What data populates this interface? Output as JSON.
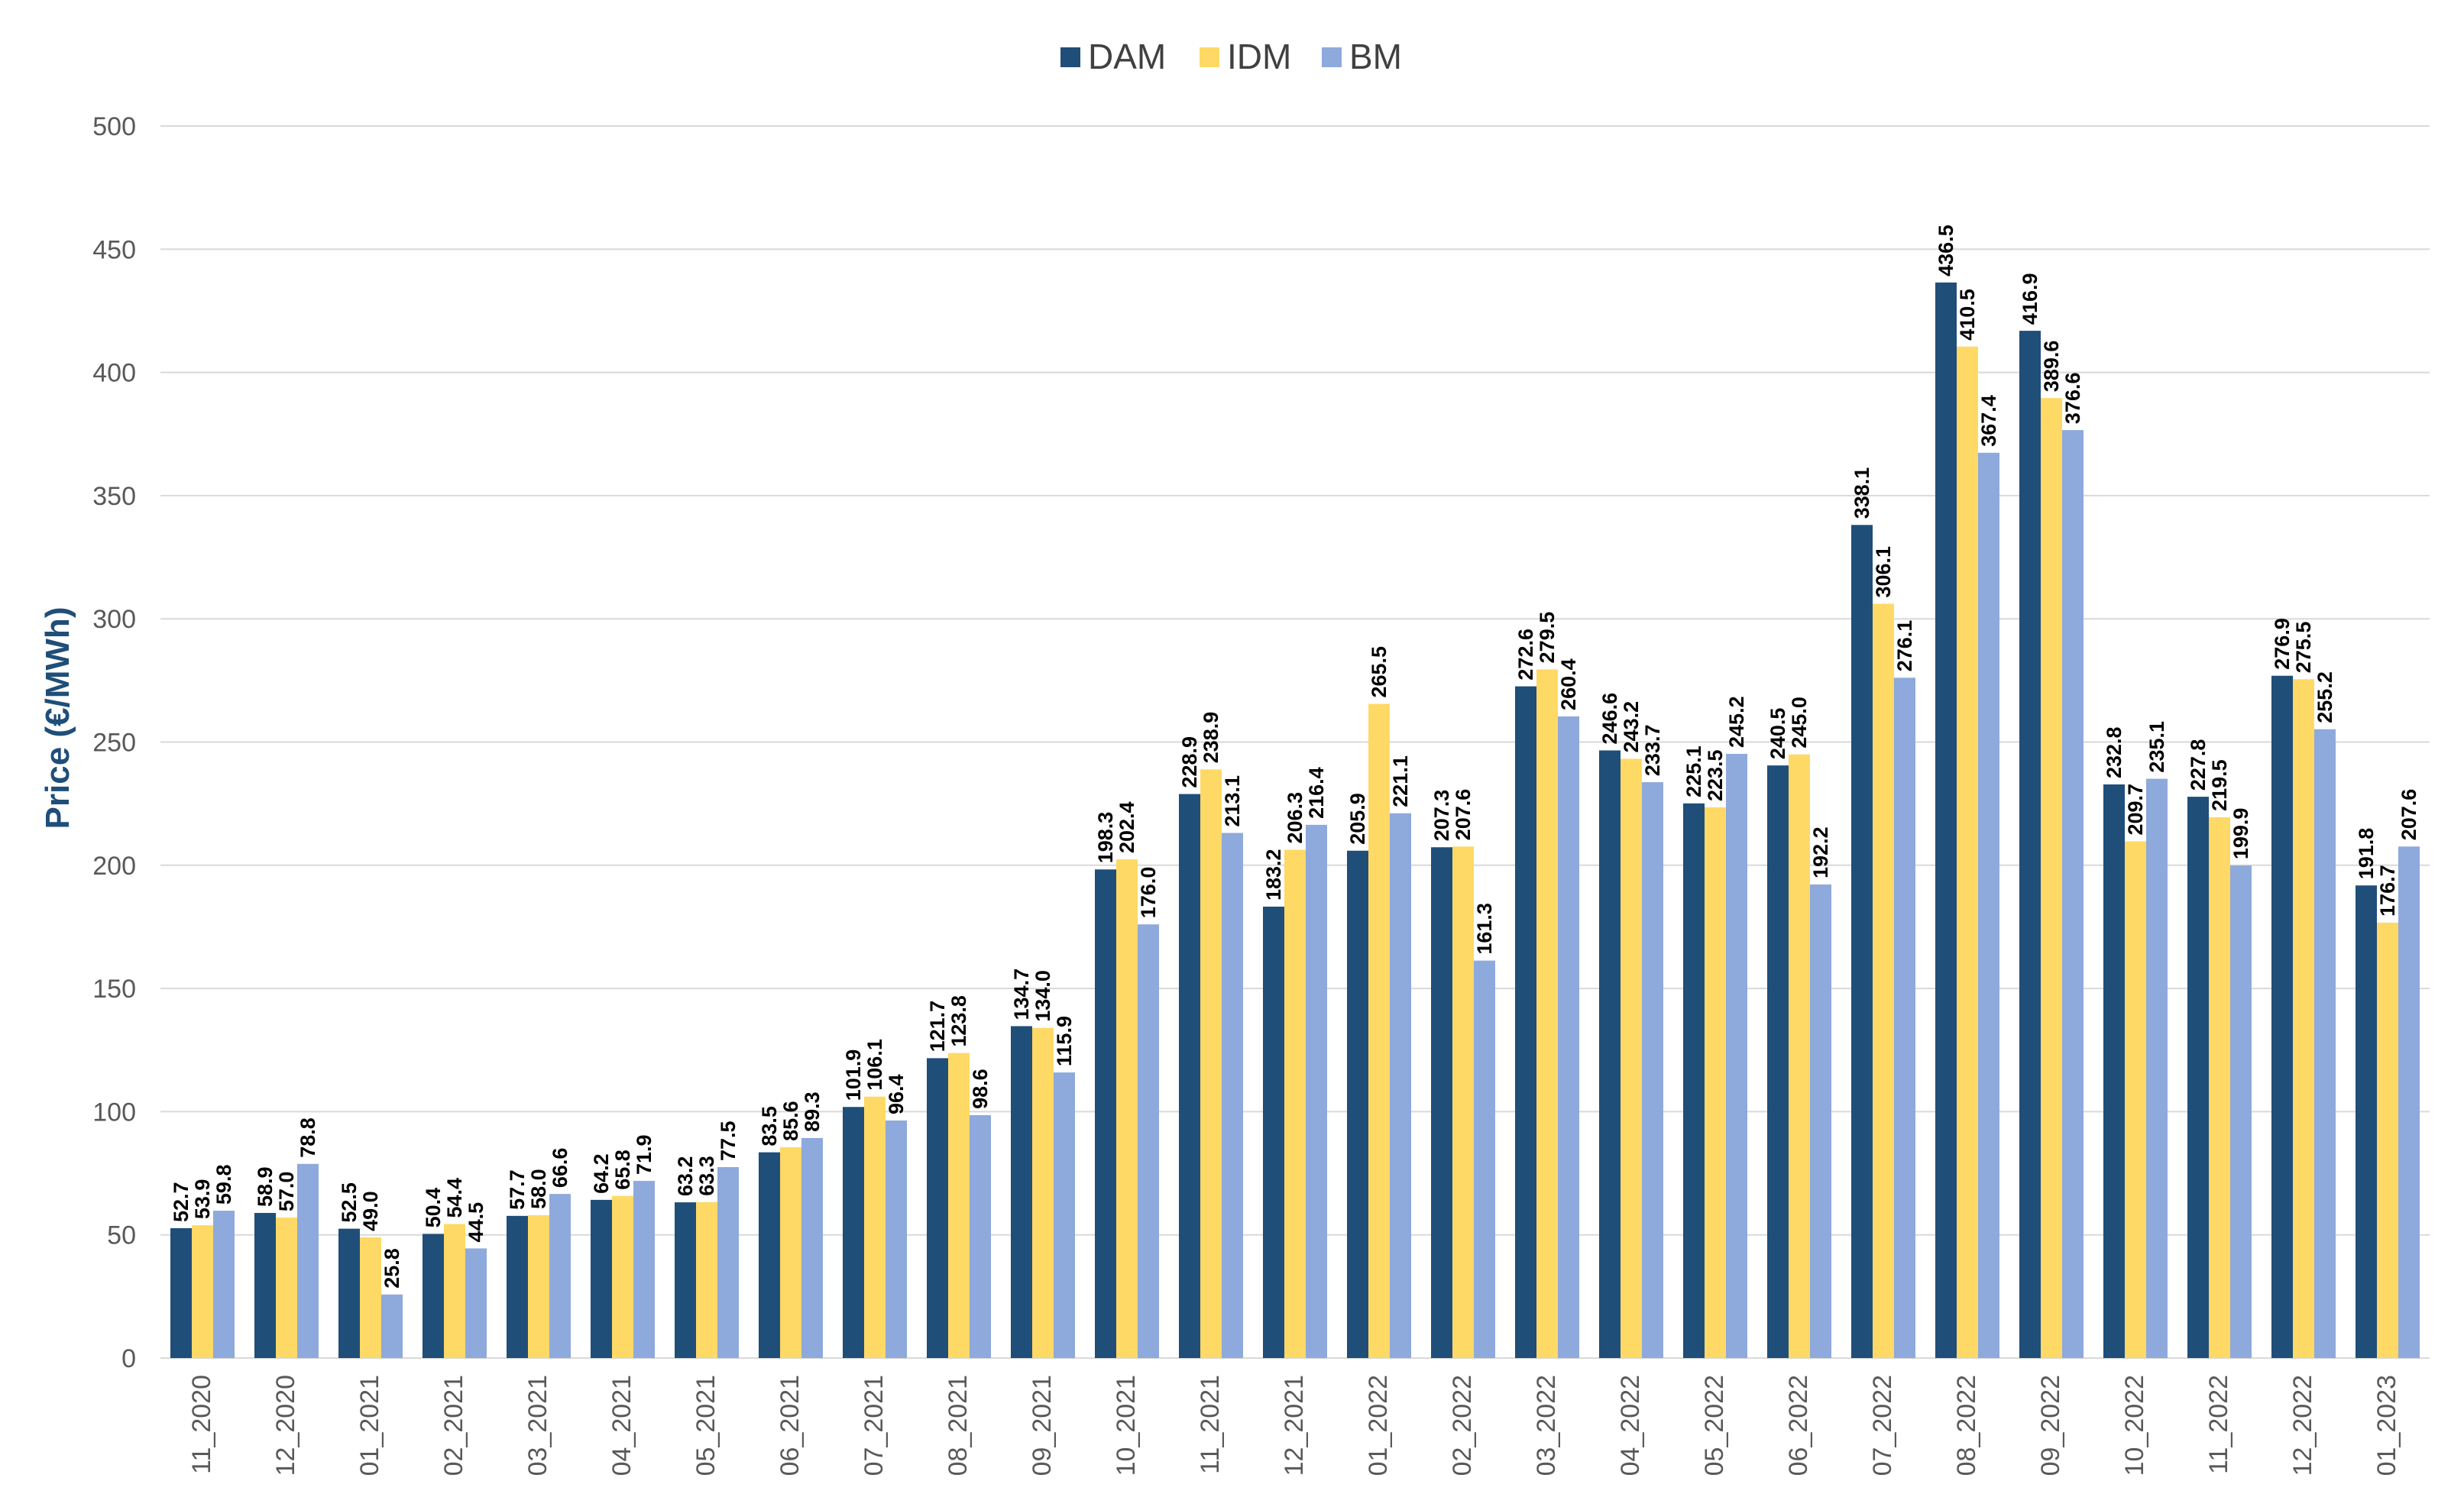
{
  "chart_data": {
    "type": "bar",
    "title": "",
    "xlabel": "",
    "ylabel": "Price (€/MWh)",
    "ylim": [
      0,
      500
    ],
    "yticks": [
      0,
      50,
      100,
      150,
      200,
      250,
      300,
      350,
      400,
      450,
      500
    ],
    "legend_position": "top-center",
    "grid": true,
    "categories": [
      "11_2020",
      "12_2020",
      "01_2021",
      "02_2021",
      "03_2021",
      "04_2021",
      "05_2021",
      "06_2021",
      "07_2021",
      "08_2021",
      "09_2021",
      "10_2021",
      "11_2021",
      "12_2021",
      "01_2022",
      "02_2022",
      "03_2022",
      "04_2022",
      "05_2022",
      "06_2022",
      "07_2022",
      "08_2022",
      "09_2022",
      "10_2022",
      "11_2022",
      "12_2022",
      "01_2023"
    ],
    "series": [
      {
        "name": "DAM",
        "color": "#1F4E79",
        "values": [
          52.7,
          58.9,
          52.5,
          50.4,
          57.7,
          64.2,
          63.2,
          83.5,
          101.9,
          121.7,
          134.7,
          198.3,
          228.9,
          183.2,
          205.9,
          207.3,
          272.6,
          246.6,
          225.1,
          240.5,
          338.1,
          436.5,
          416.9,
          232.8,
          227.8,
          276.9,
          191.8
        ]
      },
      {
        "name": "IDM",
        "color": "#FFD966",
        "values": [
          53.9,
          57.0,
          49.0,
          54.4,
          58.0,
          65.8,
          63.3,
          85.6,
          106.1,
          123.8,
          134.0,
          202.4,
          238.9,
          206.3,
          265.5,
          207.6,
          279.5,
          243.2,
          223.5,
          245.0,
          306.1,
          410.5,
          389.6,
          209.7,
          219.5,
          275.5,
          176.7
        ]
      },
      {
        "name": "BM",
        "color": "#8EA9DB",
        "values": [
          59.8,
          78.8,
          25.8,
          44.5,
          66.6,
          71.9,
          77.5,
          89.3,
          96.4,
          98.6,
          115.9,
          176.0,
          213.1,
          216.4,
          221.1,
          161.3,
          260.4,
          233.7,
          245.2,
          192.2,
          276.1,
          367.4,
          376.6,
          235.1,
          199.9,
          255.2,
          207.6
        ]
      }
    ]
  }
}
